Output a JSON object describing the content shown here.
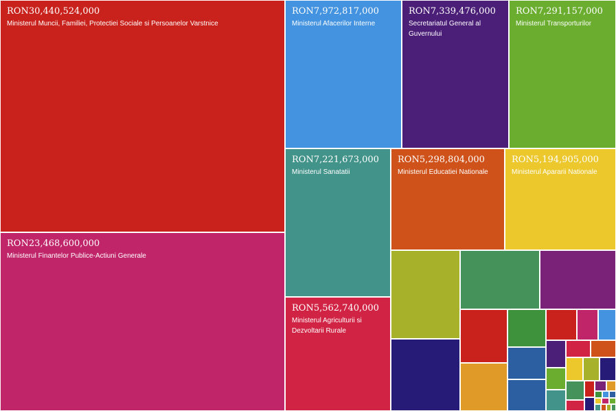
{
  "chart_data": {
    "type": "treemap",
    "currency": "RON",
    "items": [
      {
        "label": "Ministerul Muncii, Familiei, Protectiei Sociale si Persoanelor Varstnice",
        "value_text": "RON30,440,524,000",
        "value": 30440524000,
        "color": "#c9221c",
        "show_label": true
      },
      {
        "label": "Ministerul Finantelor Publice-Actiuni Generale",
        "value_text": "RON23,468,600,000",
        "value": 23468600000,
        "color": "#c0256a",
        "show_label": true
      },
      {
        "label": "Ministerul Afacerilor Interne",
        "value_text": "RON7,972,817,000",
        "value": 7972817000,
        "color": "#4393e0",
        "show_label": true
      },
      {
        "label": "Secretariatul General al Guvernului",
        "value_text": "RON7,339,476,000",
        "value": 7339476000,
        "color": "#4b1e78",
        "show_label": true
      },
      {
        "label": "Ministerul Transporturilor",
        "value_text": "RON7,291,157,000",
        "value": 7291157000,
        "color": "#6aad2f",
        "show_label": true
      },
      {
        "label": "Ministerul Sanatatii",
        "value_text": "RON7,221,673,000",
        "value": 7221673000,
        "color": "#42938a",
        "show_label": true
      },
      {
        "label": "Ministerul Educatiei Nationale",
        "value_text": "RON5,298,804,000",
        "value": 5298804000,
        "color": "#cf521b",
        "show_label": true
      },
      {
        "label": "Ministerul Apararii Nationale",
        "value_text": "RON5,194,905,000",
        "value": 5194905000,
        "color": "#ecc82c",
        "show_label": true
      },
      {
        "label": "Ministerul Agriculturii si Dezvoltarii Rurale",
        "value_text": "RON5,562,740,000",
        "value": 5562740000,
        "color": "#d12444",
        "show_label": true
      },
      {
        "color": "#a7b22a",
        "show_label": false
      },
      {
        "color": "#45925a",
        "show_label": false
      },
      {
        "color": "#7a2178",
        "show_label": false
      },
      {
        "color": "#261c78",
        "show_label": false
      },
      {
        "color": "#c9221c",
        "show_label": false
      },
      {
        "color": "#e09a27",
        "show_label": false
      },
      {
        "color": "#3f923c",
        "show_label": false
      },
      {
        "color": "#2c5fa2",
        "show_label": false
      },
      {
        "color": "#2c5fa2",
        "show_label": false
      },
      {
        "color": "#c9221c",
        "show_label": false
      },
      {
        "color": "#c0256a",
        "show_label": false
      },
      {
        "color": "#4393e0",
        "show_label": false
      },
      {
        "color": "#4b1e78",
        "show_label": false
      },
      {
        "color": "#d12444",
        "show_label": false
      },
      {
        "color": "#cf521b",
        "show_label": false
      },
      {
        "color": "#6aad2f",
        "show_label": false
      },
      {
        "color": "#ecc82c",
        "show_label": false
      },
      {
        "color": "#a7b22a",
        "show_label": false
      },
      {
        "color": "#261c78",
        "show_label": false
      },
      {
        "color": "#42938a",
        "show_label": false
      },
      {
        "color": "#45925a",
        "show_label": false
      },
      {
        "color": "#c9221c",
        "show_label": false
      },
      {
        "color": "#7a2178",
        "show_label": false
      },
      {
        "color": "#e09a27",
        "show_label": false
      },
      {
        "color": "#3f923c",
        "show_label": false
      },
      {
        "color": "#4393e0",
        "show_label": false
      },
      {
        "color": "#2c5fa2",
        "show_label": false
      },
      {
        "color": "#ecc82c",
        "show_label": false
      },
      {
        "color": "#c0256a",
        "show_label": false
      },
      {
        "color": "#6aad2f",
        "show_label": false
      },
      {
        "color": "#d12444",
        "show_label": false
      },
      {
        "color": "#261c78",
        "show_label": false
      },
      {
        "color": "#42938a",
        "show_label": false
      },
      {
        "color": "#cf521b",
        "show_label": false
      },
      {
        "color": "#a7b22a",
        "show_label": false
      },
      {
        "color": "#45925a",
        "show_label": false
      },
      {
        "color": "#c9221c",
        "show_label": false
      },
      {
        "color": "#4393e0",
        "show_label": false
      }
    ]
  }
}
